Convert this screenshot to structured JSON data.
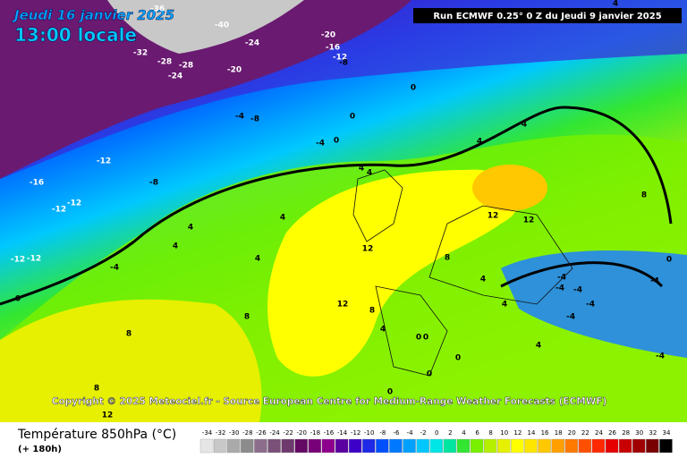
{
  "header": {
    "date": "Jeudi 16 janvier 2025",
    "time": "13:00 locale",
    "run": "Run ECMWF 0.25° 0 Z du Jeudi 9 janvier 2025"
  },
  "copyright": "Copyright © 2025 Meteociel.fr - Source European Centre for Medium-Range Weather Forecasts (ECMWF)",
  "footer": {
    "title": "Température 850hPa (°C)",
    "lead": "(+ 180h)"
  },
  "legend": {
    "labels": [
      -34,
      -32,
      -30,
      -28,
      -26,
      -24,
      -22,
      -20,
      -18,
      -16,
      -14,
      -12,
      -10,
      -8,
      -6,
      -4,
      -2,
      0,
      2,
      4,
      6,
      8,
      10,
      12,
      14,
      16,
      18,
      20,
      22,
      24,
      26,
      28,
      30,
      32,
      34
    ],
    "colors": [
      "#e6e6e6",
      "#c8c8c8",
      "#aaaaaa",
      "#8c8c8c",
      "#8c6e8c",
      "#7a5078",
      "#6e3a6e",
      "#640a64",
      "#780078",
      "#8c008c",
      "#5a00a0",
      "#3c00c8",
      "#1e28e6",
      "#0050ff",
      "#0078ff",
      "#00a0ff",
      "#00c8ff",
      "#00e6e6",
      "#00e6a0",
      "#32e632",
      "#78f000",
      "#b4f000",
      "#e6f000",
      "#ffff00",
      "#ffe600",
      "#ffc800",
      "#ffa000",
      "#ff7800",
      "#ff5000",
      "#ff2800",
      "#e60000",
      "#c80000",
      "#a00000",
      "#780000",
      "#000000"
    ]
  },
  "contour_labels": [
    -36,
    -40,
    -24,
    -32,
    -28,
    -28,
    -24,
    -20,
    -20,
    -16,
    -12,
    -8,
    0,
    -4,
    -8,
    0,
    -4,
    0,
    -12,
    -16,
    -8,
    -12,
    -12,
    -12,
    -12,
    -4,
    0,
    4,
    4,
    4,
    4,
    4,
    4,
    4,
    8,
    8,
    8,
    12,
    12,
    12,
    12,
    12,
    8,
    8,
    4,
    0,
    0,
    0,
    0,
    0,
    4,
    4,
    4,
    8,
    0,
    -4,
    -4,
    -4,
    -4,
    -4,
    -4,
    -4,
    4,
    4
  ]
}
